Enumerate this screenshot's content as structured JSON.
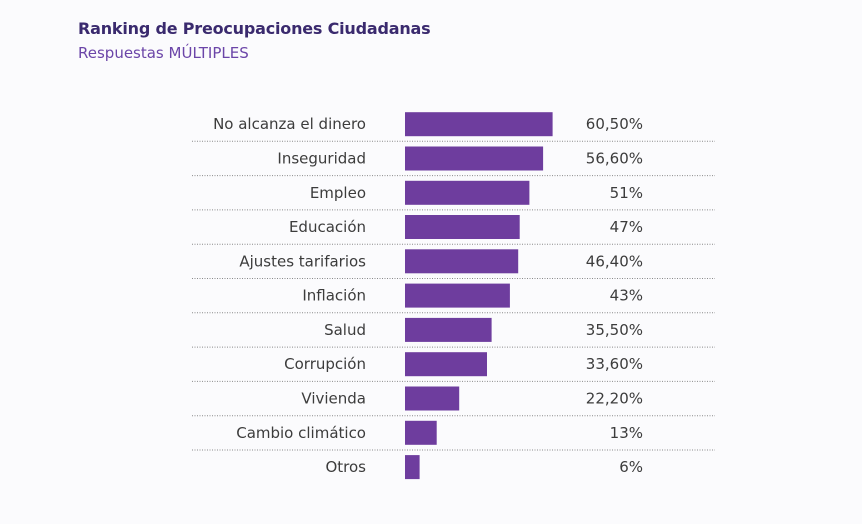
{
  "chart_data": {
    "type": "bar",
    "orientation": "horizontal",
    "title": "Ranking de Preocupaciones Ciudadanas",
    "subtitle": "Respuestas MÚLTIPLES",
    "categories": [
      "No alcanza el dinero",
      "Inseguridad",
      "Empleo",
      "Educación",
      "Ajustes tarifarios",
      "Inflación",
      "Salud",
      "Corrupción",
      "Vivienda",
      "Cambio climático",
      "Otros"
    ],
    "values": [
      60.5,
      56.6,
      51,
      47,
      46.4,
      43,
      35.5,
      33.6,
      22.2,
      13,
      6
    ],
    "value_labels": [
      "60,50%",
      "56,60%",
      "51%",
      "47%",
      "46,40%",
      "43%",
      "35,50%",
      "33,60%",
      "22,20%",
      "13%",
      "6%"
    ],
    "bar_color": "#6e3d9e",
    "separator_color": "#8a8a8a",
    "grid": false,
    "legend": "none"
  }
}
